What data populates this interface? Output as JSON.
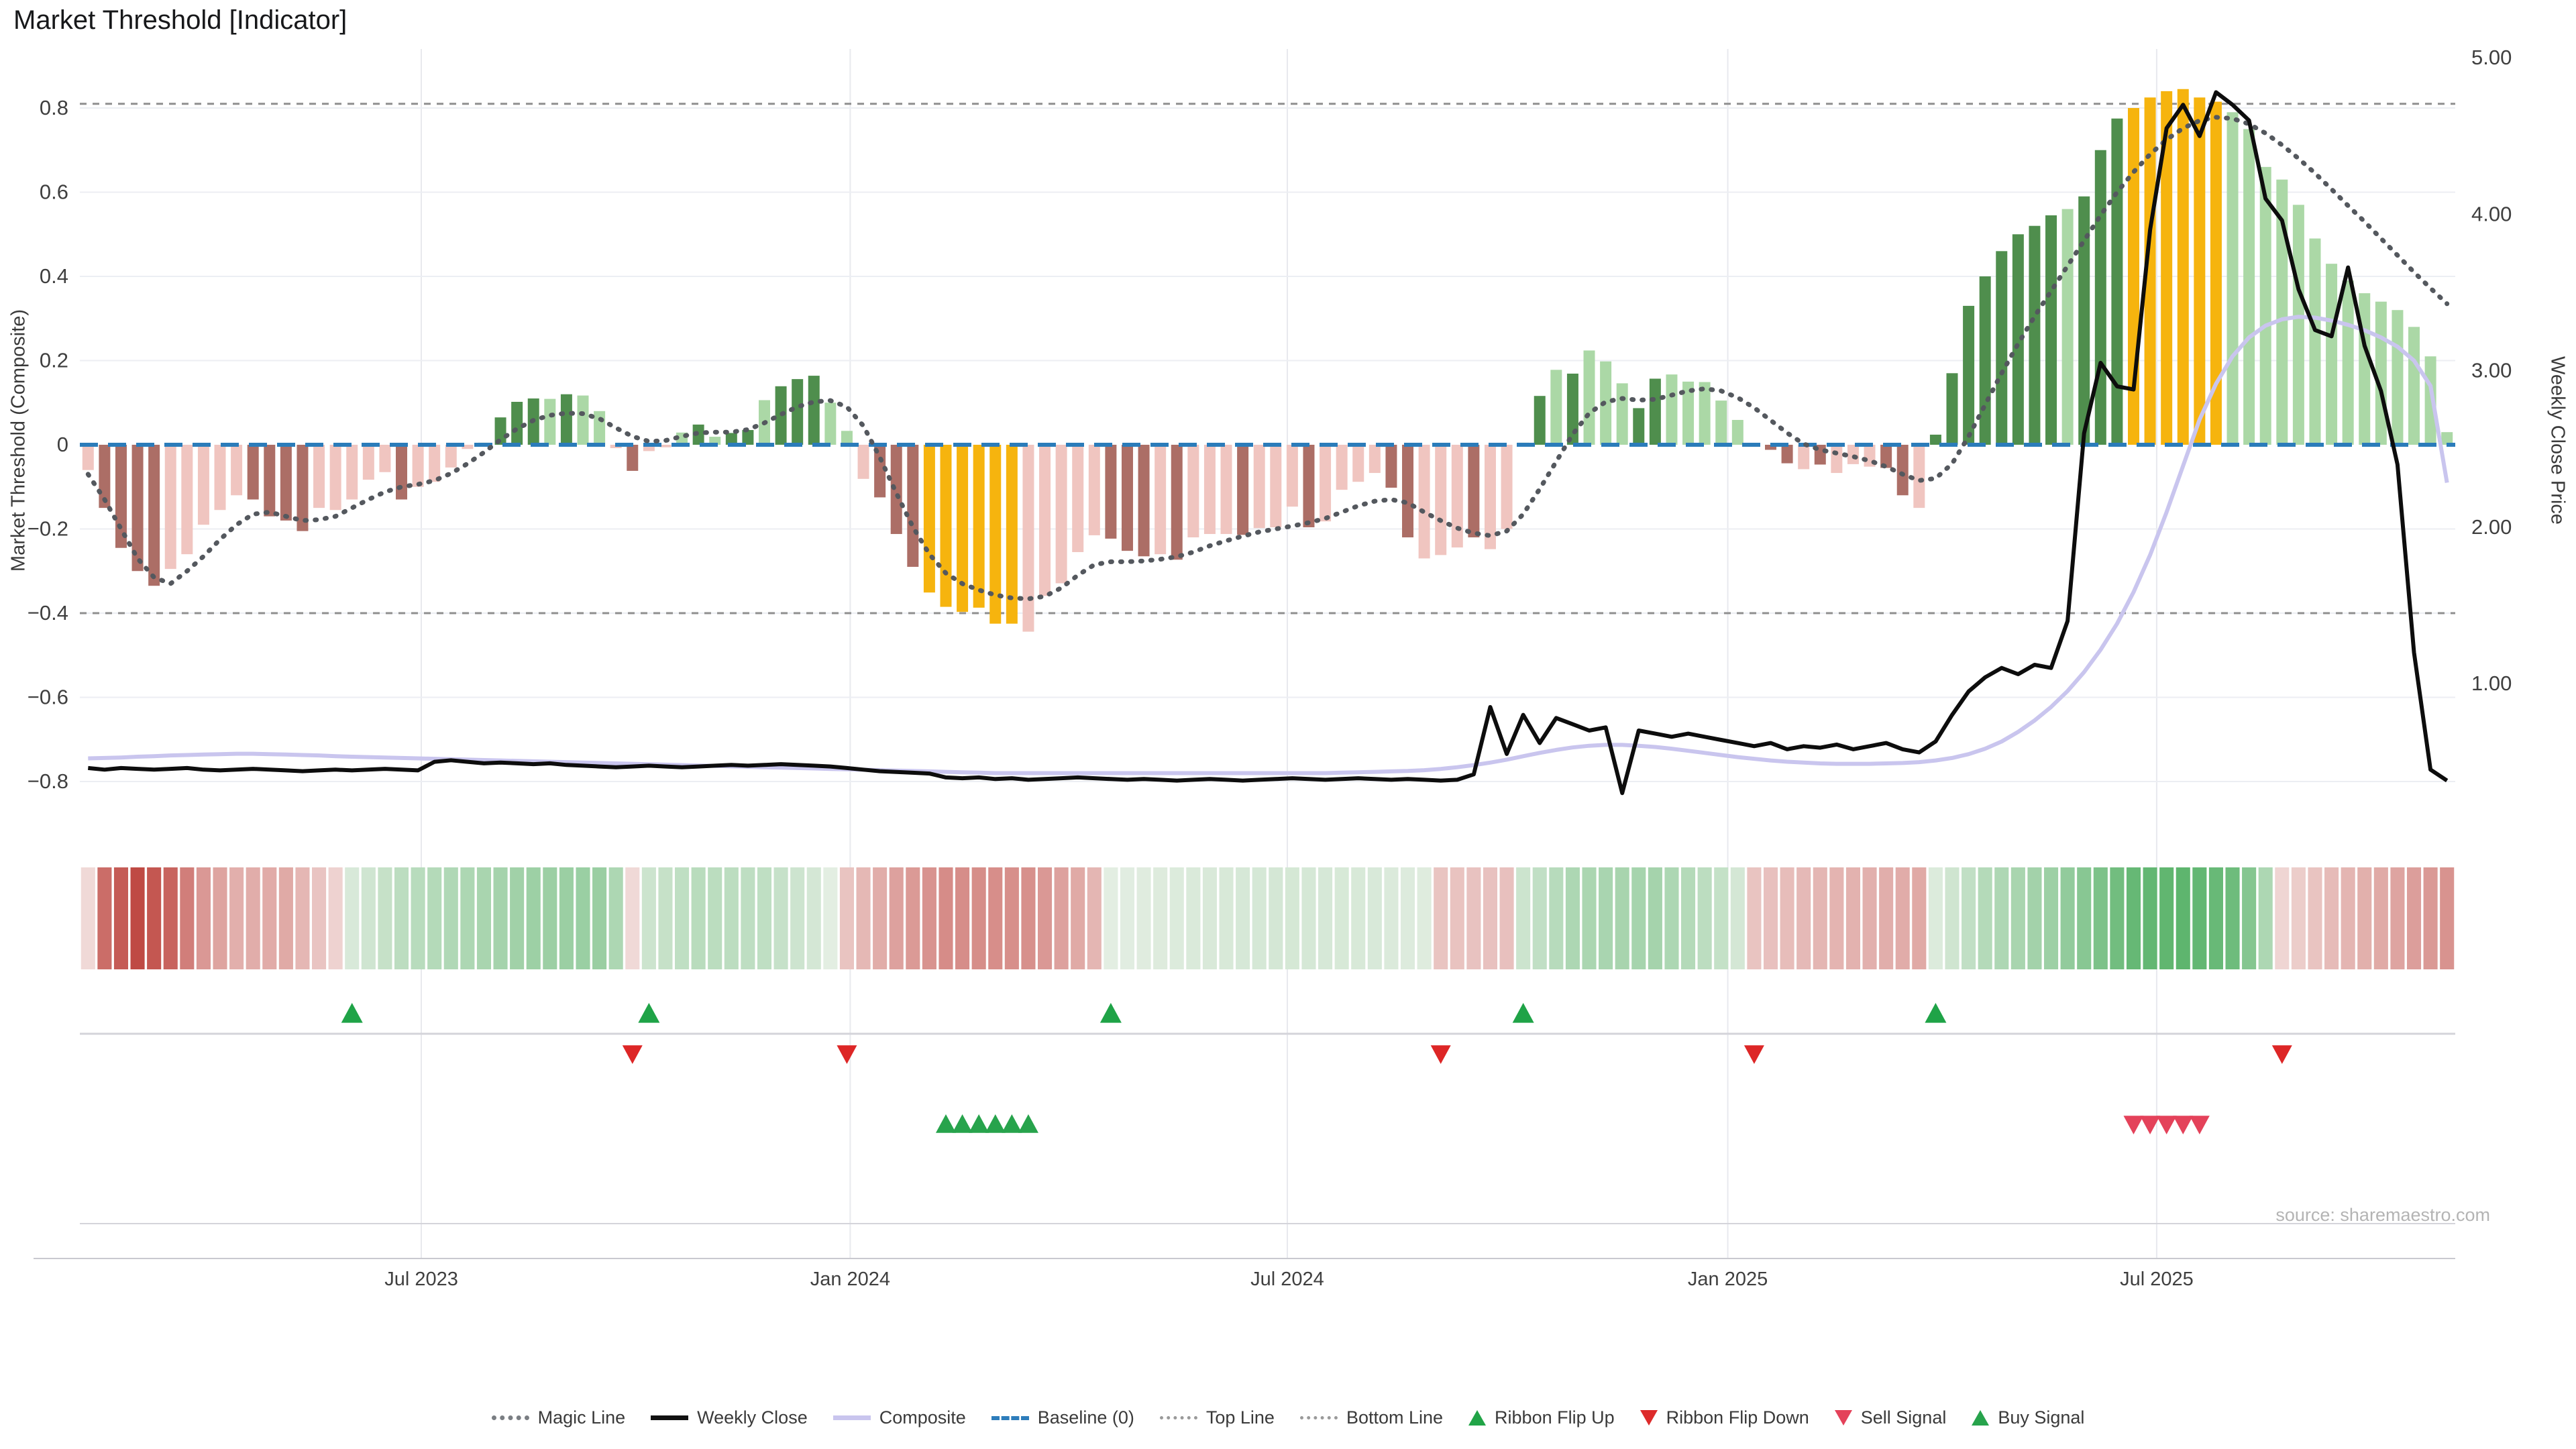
{
  "page": {
    "title": "Market Threshold [Indicator]",
    "source": "source: sharemaestro.com"
  },
  "axes": {
    "left_label": "Market Threshold (Composite)",
    "right_label": "Weekly Close Price",
    "left_ticks": [
      {
        "v": 0.8,
        "label": "0.8"
      },
      {
        "v": 0.6,
        "label": "0.6"
      },
      {
        "v": 0.4,
        "label": "0.4"
      },
      {
        "v": 0.2,
        "label": "0.2"
      },
      {
        "v": 0.0,
        "label": "0"
      },
      {
        "v": -0.2,
        "label": "−0.2"
      },
      {
        "v": -0.4,
        "label": "−0.4"
      },
      {
        "v": -0.6,
        "label": "−0.6"
      },
      {
        "v": -0.8,
        "label": "−0.8"
      }
    ],
    "right_ticks": [
      {
        "p": 5.0,
        "label": "5.00"
      },
      {
        "p": 4.0,
        "label": "4.00"
      },
      {
        "p": 3.0,
        "label": "3.00"
      },
      {
        "p": 2.0,
        "label": "2.00"
      },
      {
        "p": 1.0,
        "label": "1.00"
      }
    ],
    "x_ticks": [
      {
        "pos": 20.2,
        "label": "Jul 2023"
      },
      {
        "pos": 46.2,
        "label": "Jan 2024"
      },
      {
        "pos": 72.7,
        "label": "Jul 2024"
      },
      {
        "pos": 99.4,
        "label": "Jan 2025"
      },
      {
        "pos": 125.4,
        "label": "Jul 2025"
      }
    ]
  },
  "chart_data": {
    "type": "combo",
    "x_unit": "week",
    "x_range_description": "Weekly data, approx Feb 2023 to Nov 2025 (144 weeks)",
    "left_axis": {
      "label": "Market Threshold (Composite)",
      "range": [
        -0.94,
        0.94
      ]
    },
    "right_axis": {
      "label": "Weekly Close Price",
      "range": [
        0.2,
        5.2
      ]
    },
    "reference_lines": {
      "baseline": 0.0,
      "top_line": 0.81,
      "bottom_line": -0.4
    },
    "grid": true,
    "legend_position": "bottom",
    "series": [
      {
        "name": "Market Threshold",
        "type": "bar",
        "axis": "left",
        "values": [
          -0.06,
          -0.15,
          -0.245,
          -0.3,
          -0.335,
          -0.295,
          -0.26,
          -0.19,
          -0.155,
          -0.12,
          -0.13,
          -0.17,
          -0.18,
          -0.205,
          -0.15,
          -0.155,
          -0.13,
          -0.083,
          -0.065,
          -0.13,
          -0.1,
          -0.088,
          -0.054,
          -0.01,
          0.005,
          0.065,
          0.102,
          0.11,
          0.109,
          0.12,
          0.117,
          0.08,
          -0.008,
          -0.062,
          -0.015,
          -0.006,
          0.029,
          0.048,
          0.019,
          0.028,
          0.035,
          0.106,
          0.139,
          0.156,
          0.164,
          0.1,
          0.033,
          -0.081,
          -0.125,
          -0.212,
          -0.29,
          -0.351,
          -0.385,
          -0.397,
          -0.387,
          -0.425,
          -0.425,
          -0.444,
          -0.359,
          -0.329,
          -0.255,
          -0.215,
          -0.223,
          -0.252,
          -0.265,
          -0.26,
          -0.273,
          -0.22,
          -0.212,
          -0.212,
          -0.214,
          -0.198,
          -0.196,
          -0.147,
          -0.196,
          -0.182,
          -0.107,
          -0.088,
          -0.067,
          -0.102,
          -0.22,
          -0.27,
          -0.262,
          -0.244,
          -0.22,
          -0.248,
          -0.2,
          0.005,
          0.116,
          0.178,
          0.169,
          0.224,
          0.198,
          0.146,
          0.087,
          0.157,
          0.167,
          0.15,
          0.149,
          0.105,
          0.059,
          -0.005,
          -0.012,
          -0.044,
          -0.058,
          -0.047,
          -0.067,
          -0.046,
          -0.052,
          -0.055,
          -0.12,
          -0.15,
          0.024,
          0.17,
          0.33,
          0.4,
          0.46,
          0.5,
          0.52,
          0.545,
          0.56,
          0.59,
          0.7,
          0.775,
          0.8,
          0.825,
          0.84,
          0.845,
          0.825,
          0.815,
          0.79,
          0.75,
          0.66,
          0.63,
          0.57,
          0.49,
          0.43,
          0.39,
          0.36,
          0.34,
          0.32,
          0.28,
          0.21,
          0.03
        ],
        "tones": "lddddlllllddddlllllderr",
        "tone_string": "lddddlllllddddllllldllllldddldllldllldlddldddllldddggggggulllldddldllldllldllllddllldllldldlllddllllllddldlllddlddddddddldddggggggllllllllllllll"
      },
      {
        "name": "Magic Line",
        "type": "line",
        "style": "dotted",
        "axis": "left",
        "values": [
          -0.07,
          -0.13,
          -0.2,
          -0.27,
          -0.315,
          -0.33,
          -0.3,
          -0.265,
          -0.225,
          -0.19,
          -0.165,
          -0.16,
          -0.17,
          -0.18,
          -0.178,
          -0.17,
          -0.15,
          -0.13,
          -0.112,
          -0.1,
          -0.094,
          -0.085,
          -0.068,
          -0.045,
          -0.018,
          0.012,
          0.038,
          0.058,
          0.07,
          0.075,
          0.074,
          0.062,
          0.04,
          0.02,
          0.008,
          0.01,
          0.02,
          0.028,
          0.03,
          0.03,
          0.036,
          0.052,
          0.072,
          0.09,
          0.102,
          0.105,
          0.09,
          0.045,
          -0.03,
          -0.115,
          -0.195,
          -0.26,
          -0.305,
          -0.33,
          -0.345,
          -0.357,
          -0.364,
          -0.366,
          -0.36,
          -0.34,
          -0.31,
          -0.285,
          -0.278,
          -0.278,
          -0.276,
          -0.272,
          -0.266,
          -0.255,
          -0.24,
          -0.228,
          -0.217,
          -0.207,
          -0.2,
          -0.193,
          -0.185,
          -0.175,
          -0.16,
          -0.145,
          -0.134,
          -0.13,
          -0.138,
          -0.16,
          -0.18,
          -0.198,
          -0.21,
          -0.216,
          -0.205,
          -0.165,
          -0.105,
          -0.04,
          0.025,
          0.075,
          0.102,
          0.11,
          0.106,
          0.108,
          0.118,
          0.128,
          0.133,
          0.128,
          0.112,
          0.088,
          0.058,
          0.028,
          0.002,
          -0.012,
          -0.02,
          -0.028,
          -0.038,
          -0.052,
          -0.07,
          -0.085,
          -0.08,
          -0.045,
          0.02,
          0.095,
          0.17,
          0.24,
          0.305,
          0.365,
          0.425,
          0.485,
          0.545,
          0.6,
          0.648,
          0.69,
          0.725,
          0.752,
          0.77,
          0.778,
          0.775,
          0.762,
          0.74,
          0.712,
          0.68,
          0.645,
          0.607,
          0.568,
          0.53,
          0.49,
          0.45,
          0.41,
          0.372,
          0.335
        ]
      },
      {
        "name": "Composite",
        "type": "line",
        "style": "solid",
        "axis": "left",
        "values": [
          -0.745,
          -0.744,
          -0.743,
          -0.741,
          -0.74,
          -0.738,
          -0.737,
          -0.736,
          -0.735,
          -0.734,
          -0.734,
          -0.735,
          -0.736,
          -0.737,
          -0.738,
          -0.74,
          -0.741,
          -0.742,
          -0.743,
          -0.744,
          -0.745,
          -0.746,
          -0.747,
          -0.748,
          -0.749,
          -0.75,
          -0.751,
          -0.752,
          -0.753,
          -0.754,
          -0.755,
          -0.756,
          -0.757,
          -0.758,
          -0.759,
          -0.76,
          -0.761,
          -0.762,
          -0.763,
          -0.764,
          -0.765,
          -0.766,
          -0.767,
          -0.768,
          -0.769,
          -0.77,
          -0.771,
          -0.772,
          -0.773,
          -0.774,
          -0.775,
          -0.776,
          -0.777,
          -0.778,
          -0.779,
          -0.78,
          -0.78,
          -0.78,
          -0.78,
          -0.78,
          -0.78,
          -0.78,
          -0.78,
          -0.78,
          -0.78,
          -0.78,
          -0.78,
          -0.78,
          -0.78,
          -0.78,
          -0.78,
          -0.78,
          -0.78,
          -0.78,
          -0.78,
          -0.78,
          -0.779,
          -0.778,
          -0.777,
          -0.776,
          -0.775,
          -0.773,
          -0.77,
          -0.766,
          -0.761,
          -0.755,
          -0.748,
          -0.74,
          -0.732,
          -0.725,
          -0.719,
          -0.715,
          -0.713,
          -0.713,
          -0.715,
          -0.718,
          -0.722,
          -0.727,
          -0.732,
          -0.737,
          -0.742,
          -0.746,
          -0.75,
          -0.753,
          -0.755,
          -0.757,
          -0.758,
          -0.758,
          -0.758,
          -0.757,
          -0.756,
          -0.754,
          -0.75,
          -0.744,
          -0.735,
          -0.722,
          -0.705,
          -0.682,
          -0.655,
          -0.623,
          -0.585,
          -0.54,
          -0.487,
          -0.425,
          -0.35,
          -0.262,
          -0.16,
          -0.05,
          0.06,
          0.145,
          0.21,
          0.255,
          0.283,
          0.298,
          0.304,
          0.302,
          0.295,
          0.285,
          0.272,
          0.255,
          0.233,
          0.2,
          0.14,
          -0.09
        ]
      },
      {
        "name": "Weekly Close",
        "type": "line",
        "style": "solid",
        "axis": "right",
        "values": [
          0.46,
          0.45,
          0.46,
          0.455,
          0.45,
          0.455,
          0.46,
          0.45,
          0.445,
          0.45,
          0.455,
          0.45,
          0.445,
          0.44,
          0.445,
          0.45,
          0.445,
          0.45,
          0.455,
          0.45,
          0.445,
          0.5,
          0.51,
          0.5,
          0.49,
          0.495,
          0.49,
          0.485,
          0.49,
          0.48,
          0.475,
          0.47,
          0.465,
          0.47,
          0.475,
          0.47,
          0.465,
          0.47,
          0.475,
          0.48,
          0.475,
          0.48,
          0.485,
          0.48,
          0.475,
          0.47,
          0.46,
          0.45,
          0.44,
          0.435,
          0.43,
          0.425,
          0.4,
          0.395,
          0.4,
          0.39,
          0.395,
          0.385,
          0.39,
          0.395,
          0.4,
          0.395,
          0.39,
          0.385,
          0.39,
          0.385,
          0.38,
          0.385,
          0.39,
          0.385,
          0.38,
          0.385,
          0.39,
          0.395,
          0.39,
          0.385,
          0.39,
          0.395,
          0.39,
          0.385,
          0.39,
          0.385,
          0.38,
          0.385,
          0.42,
          0.85,
          0.55,
          0.8,
          0.62,
          0.78,
          0.74,
          0.7,
          0.72,
          0.3,
          0.7,
          0.68,
          0.66,
          0.68,
          0.66,
          0.64,
          0.62,
          0.6,
          0.62,
          0.58,
          0.6,
          0.59,
          0.61,
          0.58,
          0.6,
          0.62,
          0.58,
          0.56,
          0.63,
          0.8,
          0.95,
          1.04,
          1.1,
          1.06,
          1.12,
          1.1,
          1.4,
          2.6,
          3.05,
          2.9,
          2.88,
          3.9,
          4.55,
          4.7,
          4.5,
          4.78,
          4.7,
          4.6,
          4.1,
          3.96,
          3.52,
          3.26,
          3.22,
          3.66,
          3.16,
          2.87,
          2.4,
          1.2,
          0.45,
          0.38
        ]
      }
    ]
  },
  "ribbon": {
    "description": "Weekly sentiment ribbon heatmap below chart",
    "spans": [
      {
        "from": 0,
        "to": 15,
        "sign": -1,
        "keys": [
          [
            0,
            0.18
          ],
          [
            1,
            0.8
          ],
          [
            3,
            1.0
          ],
          [
            5,
            0.85
          ],
          [
            7,
            0.55
          ],
          [
            9,
            0.42
          ],
          [
            12,
            0.45
          ],
          [
            15,
            0.22
          ]
        ]
      },
      {
        "from": 16,
        "to": 32,
        "sign": 1,
        "keys": [
          [
            16,
            0.22
          ],
          [
            19,
            0.4
          ],
          [
            23,
            0.5
          ],
          [
            27,
            0.6
          ],
          [
            31,
            0.62
          ],
          [
            32,
            0.5
          ]
        ]
      },
      {
        "from": 33,
        "to": 33,
        "sign": -1,
        "keys": [
          [
            33,
            0.18
          ]
        ]
      },
      {
        "from": 34,
        "to": 45,
        "sign": 1,
        "keys": [
          [
            34,
            0.3
          ],
          [
            37,
            0.42
          ],
          [
            41,
            0.38
          ],
          [
            44,
            0.25
          ],
          [
            45,
            0.15
          ]
        ]
      },
      {
        "from": 46,
        "to": 61,
        "sign": -1,
        "keys": [
          [
            46,
            0.3
          ],
          [
            49,
            0.5
          ],
          [
            52,
            0.62
          ],
          [
            57,
            0.6
          ],
          [
            60,
            0.45
          ],
          [
            61,
            0.38
          ]
        ]
      },
      {
        "from": 62,
        "to": 81,
        "sign": 1,
        "keys": [
          [
            62,
            0.15
          ],
          [
            66,
            0.2
          ],
          [
            72,
            0.25
          ],
          [
            78,
            0.22
          ],
          [
            81,
            0.18
          ]
        ]
      },
      {
        "from": 82,
        "to": 86,
        "sign": -1,
        "keys": [
          [
            82,
            0.3
          ],
          [
            86,
            0.32
          ]
        ]
      },
      {
        "from": 87,
        "to": 100,
        "sign": 1,
        "keys": [
          [
            87,
            0.3
          ],
          [
            90,
            0.5
          ],
          [
            95,
            0.55
          ],
          [
            99,
            0.35
          ],
          [
            100,
            0.25
          ]
        ]
      },
      {
        "from": 101,
        "to": 111,
        "sign": -1,
        "keys": [
          [
            101,
            0.3
          ],
          [
            105,
            0.38
          ],
          [
            111,
            0.45
          ]
        ]
      },
      {
        "from": 112,
        "to": 132,
        "sign": 1,
        "keys": [
          [
            112,
            0.2
          ],
          [
            115,
            0.45
          ],
          [
            119,
            0.6
          ],
          [
            122,
            0.8
          ],
          [
            124,
            0.95
          ],
          [
            127,
            1.0
          ],
          [
            130,
            0.9
          ],
          [
            131,
            0.75
          ],
          [
            132,
            0.5
          ]
        ]
      },
      {
        "from": 133,
        "to": 143,
        "sign": -1,
        "keys": [
          [
            133,
            0.2
          ],
          [
            136,
            0.35
          ],
          [
            139,
            0.45
          ],
          [
            143,
            0.58
          ]
        ]
      }
    ]
  },
  "signals": {
    "flip_up_weeks": [
      16,
      34,
      62,
      87,
      112
    ],
    "flip_down_weeks": [
      33,
      46,
      82,
      101,
      133
    ],
    "buy_signal_weeks": [
      52,
      53,
      54,
      55,
      56,
      57
    ],
    "sell_signal_weeks": [
      124,
      125,
      126,
      127,
      128
    ]
  },
  "legend": {
    "items": [
      {
        "id": "magic-line",
        "label": "Magic Line",
        "swatch": "sw-magic",
        "kind": "line"
      },
      {
        "id": "weekly-close",
        "label": "Weekly Close",
        "swatch": "sw-weekly",
        "kind": "line"
      },
      {
        "id": "composite",
        "label": "Composite",
        "swatch": "sw-composite",
        "kind": "line"
      },
      {
        "id": "baseline",
        "label": "Baseline (0)",
        "swatch": "sw-baseline",
        "kind": "line"
      },
      {
        "id": "top-line",
        "label": "Top Line",
        "swatch": "sw-threshold",
        "kind": "line"
      },
      {
        "id": "bottom-line",
        "label": "Bottom Line",
        "swatch": "sw-threshold",
        "kind": "line"
      },
      {
        "id": "ribbon-flip-up",
        "label": "Ribbon Flip Up",
        "swatch": "tri-up",
        "kind": "triangle",
        "color": "#21a447"
      },
      {
        "id": "ribbon-flip-down",
        "label": "Ribbon Flip Down",
        "swatch": "tri-down",
        "kind": "triangle",
        "color": "#dd2b2b"
      },
      {
        "id": "sell-signal",
        "label": "Sell Signal",
        "swatch": "tri-down",
        "kind": "triangle",
        "color": "#e4425a"
      },
      {
        "id": "buy-signal",
        "label": "Buy Signal",
        "swatch": "tri-up",
        "kind": "triangle",
        "color": "#27a34c"
      }
    ]
  },
  "colors": {
    "bar_dark_red": "#ac6e66",
    "bar_light_red": "#f0c5c0",
    "bar_dark_green": "#4f8e4d",
    "bar_light_green": "#abd8a6",
    "bar_gold": "#f6b40e",
    "magic_line": "#54585e",
    "weekly_close": "#0d0d0d",
    "composite": "#c9c5ee",
    "baseline": "#2b7cba",
    "threshold_line": "#8f8f8f",
    "grid": "#eceef3",
    "vgrid": "#e8e9ee",
    "lane_divider": "#d4d4da",
    "axis_line": "#c9c9cf",
    "tick_text": "#3f3f3f",
    "ribbon_red_deep": "#bf4a44",
    "ribbon_green_deep": "#5eb56e",
    "ribbon_base": "#fbf8f7",
    "flip_up": "#1fa347",
    "flip_down": "#dd2626",
    "sell": "#e4425a",
    "buy": "#27a34c"
  }
}
